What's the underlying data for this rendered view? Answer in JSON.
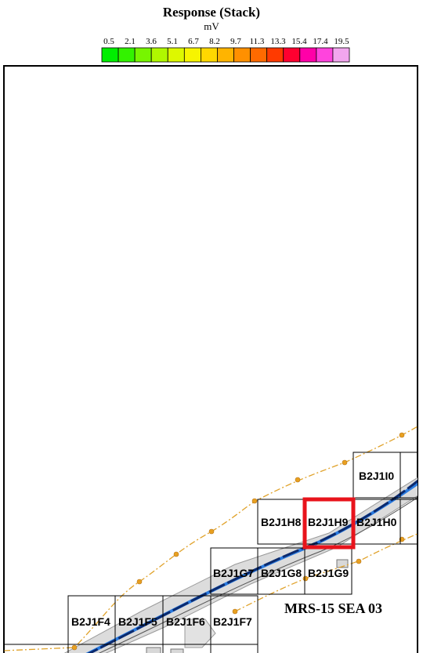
{
  "legend": {
    "title": "Response (Stack)",
    "unit": "mV",
    "ticks": [
      "0.5",
      "2.1",
      "3.6",
      "5.1",
      "6.7",
      "8.2",
      "9.7",
      "11.3",
      "13.3",
      "15.4",
      "17.4",
      "19.5"
    ],
    "colors": [
      "#00ee00",
      "#33f200",
      "#77f500",
      "#b0f800",
      "#ddf800",
      "#f7f400",
      "#ffd800",
      "#ffb400",
      "#ff9000",
      "#ff6a00",
      "#ff3a00",
      "#ff0030",
      "#ff00a8",
      "#ff44dd",
      "#f2a6ee"
    ]
  },
  "grid_cells": [
    {
      "id": "B2J1I0"
    },
    {
      "id": "B2J1H8"
    },
    {
      "id": "B2J1H9",
      "highlighted": true
    },
    {
      "id": "B2J1H0"
    },
    {
      "id": "B2J1G7"
    },
    {
      "id": "B2J1G8"
    },
    {
      "id": "B2J1G9"
    },
    {
      "id": "B2J1F4"
    },
    {
      "id": "B2J1F5"
    },
    {
      "id": "B2J1F6"
    },
    {
      "id": "B2J1F7"
    }
  ],
  "survey_label": "MRS-15 SEA 03",
  "colors": {
    "highlight": "#e8131b",
    "track_dark": "#0b2a6e",
    "track_light": "#2a7be0",
    "corridor_fill": "#dcdcdc",
    "boundary_line": "#e0a22a",
    "boundary_marker": "#e8a020"
  }
}
